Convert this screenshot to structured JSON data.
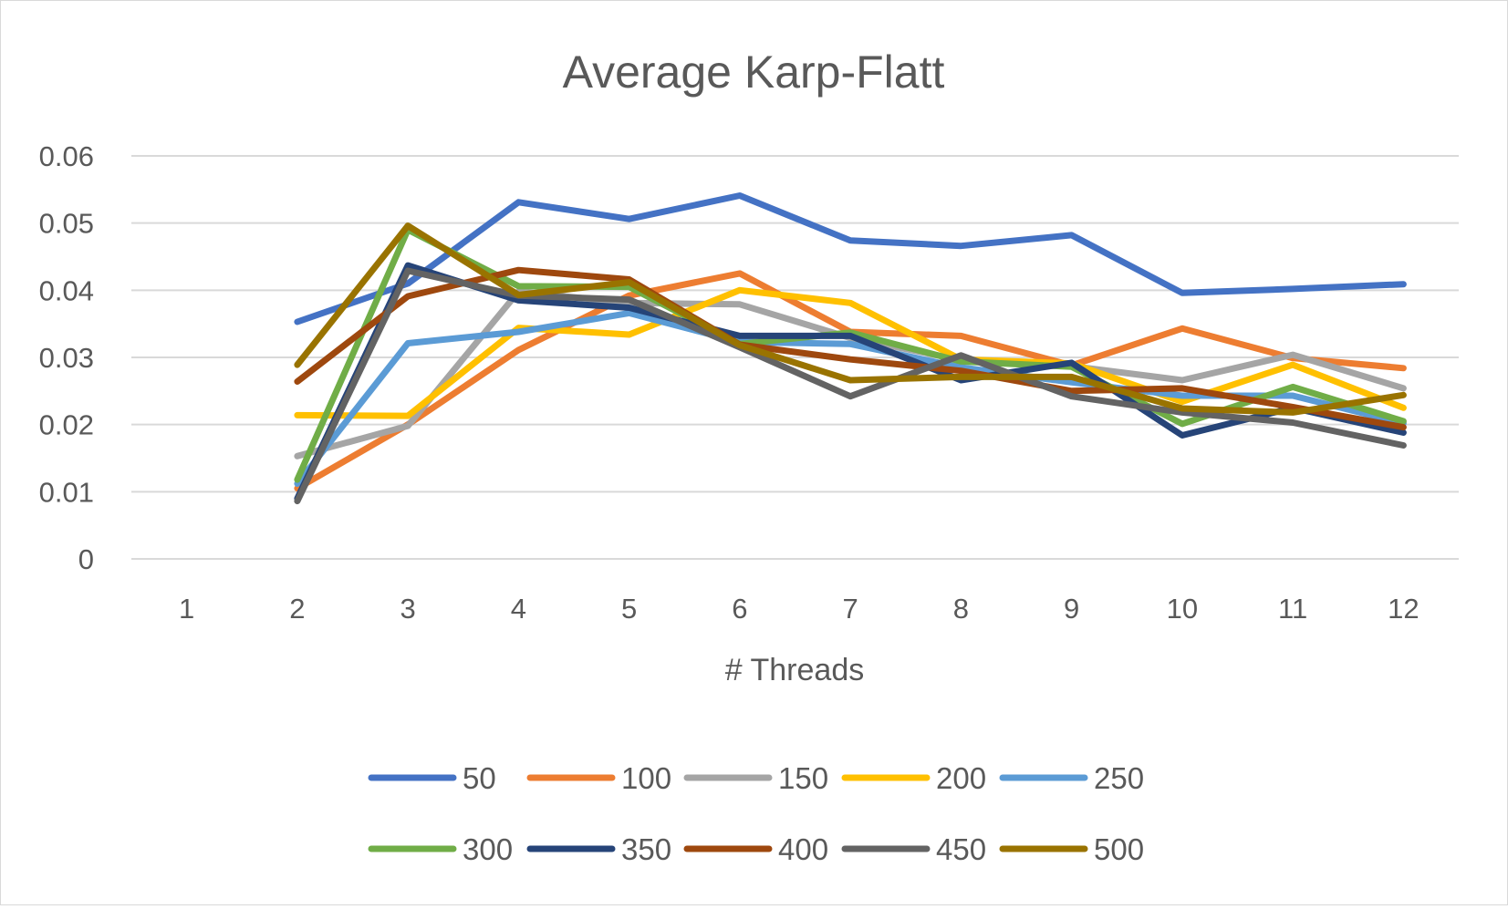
{
  "chart_data": {
    "type": "line",
    "title": "Average Karp-Flatt",
    "xlabel": "# Threads",
    "ylabel": "",
    "categories": [
      "1",
      "2",
      "3",
      "4",
      "5",
      "6",
      "7",
      "8",
      "9",
      "10",
      "11",
      "12"
    ],
    "ylim": [
      0,
      0.06
    ],
    "yticks": [
      "0",
      "0.01",
      "0.02",
      "0.03",
      "0.04",
      "0.05",
      "0.06"
    ],
    "grid": true,
    "legend_position": "bottom",
    "series": [
      {
        "name": "50",
        "color": "#4472C4",
        "values": [
          null,
          0.0353,
          0.041,
          0.0531,
          0.0506,
          0.0541,
          0.0474,
          0.0466,
          0.0482,
          0.0396,
          0.0402,
          0.0409
        ]
      },
      {
        "name": "100",
        "color": "#ED7D31",
        "values": [
          null,
          0.0105,
          0.02,
          0.0311,
          0.0392,
          0.0425,
          0.0338,
          0.0332,
          0.0288,
          0.0343,
          0.0299,
          0.0284
        ]
      },
      {
        "name": "150",
        "color": "#A5A5A5",
        "values": [
          null,
          0.0153,
          0.0198,
          0.0398,
          0.0381,
          0.0379,
          0.0329,
          0.0296,
          0.0287,
          0.0266,
          0.0304,
          0.0254
        ]
      },
      {
        "name": "200",
        "color": "#FFC000",
        "values": [
          null,
          0.0214,
          0.0213,
          0.0344,
          0.0334,
          0.04,
          0.0381,
          0.0297,
          0.0291,
          0.0234,
          0.0289,
          0.0225
        ]
      },
      {
        "name": "250",
        "color": "#5B9BD5",
        "values": [
          null,
          0.0112,
          0.0321,
          0.0338,
          0.0366,
          0.0323,
          0.032,
          0.0285,
          0.0263,
          0.0243,
          0.0243,
          0.0202
        ]
      },
      {
        "name": "300",
        "color": "#70AD47",
        "values": [
          null,
          0.0118,
          0.049,
          0.0406,
          0.0405,
          0.032,
          0.0337,
          0.0294,
          0.0286,
          0.0201,
          0.0256,
          0.0205
        ]
      },
      {
        "name": "350",
        "color": "#264478",
        "values": [
          null,
          0.009,
          0.0437,
          0.0385,
          0.0374,
          0.0332,
          0.0332,
          0.0266,
          0.0292,
          0.0184,
          0.0225,
          0.0188
        ]
      },
      {
        "name": "400",
        "color": "#9E480E",
        "values": [
          null,
          0.0264,
          0.0391,
          0.043,
          0.0416,
          0.0319,
          0.0297,
          0.028,
          0.025,
          0.0254,
          0.0226,
          0.0196
        ]
      },
      {
        "name": "450",
        "color": "#636363",
        "values": [
          null,
          0.0086,
          0.0429,
          0.0392,
          0.0386,
          0.0315,
          0.0242,
          0.0303,
          0.0242,
          0.0218,
          0.0203,
          0.0169
        ]
      },
      {
        "name": "500",
        "color": "#997300",
        "values": [
          null,
          0.0289,
          0.0496,
          0.0393,
          0.0412,
          0.0318,
          0.0266,
          0.0271,
          0.0271,
          0.0224,
          0.0218,
          0.0244
        ]
      }
    ]
  }
}
